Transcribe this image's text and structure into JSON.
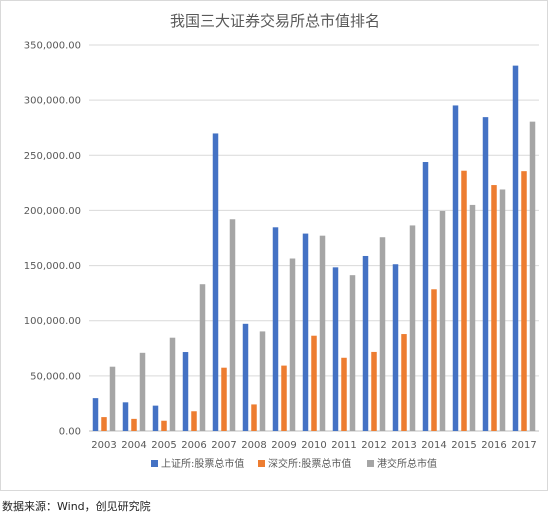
{
  "source_note": "数据来源：Wind，创见研究院",
  "chart_data": {
    "type": "bar",
    "title": "我国三大证券交易所总市值排名",
    "xlabel": "",
    "ylabel": "",
    "ylim": [
      0,
      350000
    ],
    "yticks": [
      "0.00",
      "50,000.00",
      "100,000.00",
      "150,000.00",
      "200,000.00",
      "250,000.00",
      "300,000.00",
      "350,000.00"
    ],
    "grid": true,
    "legend_position": "bottom",
    "categories": [
      "2003",
      "2004",
      "2005",
      "2006",
      "2007",
      "2008",
      "2009",
      "2010",
      "2011",
      "2012",
      "2013",
      "2014",
      "2015",
      "2016",
      "2017"
    ],
    "series": [
      {
        "name": "上证所:股票总市值",
        "color": "#4472c4",
        "values": [
          29800,
          26000,
          23000,
          71600,
          269800,
          97200,
          184700,
          179000,
          148400,
          158700,
          151200,
          243900,
          295200,
          284600,
          331300
        ]
      },
      {
        "name": "深交所:股票总市值",
        "color": "#ed7d31",
        "values": [
          12600,
          11000,
          9300,
          17900,
          57400,
          24100,
          59300,
          86400,
          66400,
          71700,
          87900,
          128500,
          236000,
          223000,
          235600
        ]
      },
      {
        "name": "港交所总市值",
        "color": "#a5a5a5",
        "values": [
          58300,
          70900,
          84600,
          133100,
          192000,
          90300,
          156400,
          177100,
          141300,
          175700,
          186400,
          199500,
          205000,
          219000,
          280500
        ]
      }
    ]
  }
}
